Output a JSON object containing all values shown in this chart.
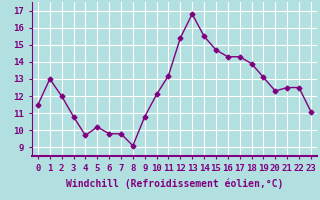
{
  "x": [
    0,
    1,
    2,
    3,
    4,
    5,
    6,
    7,
    8,
    9,
    10,
    11,
    12,
    13,
    14,
    15,
    16,
    17,
    18,
    19,
    20,
    21,
    22,
    23
  ],
  "y": [
    11.5,
    13.0,
    12.0,
    10.8,
    9.7,
    10.2,
    9.8,
    9.8,
    9.1,
    10.8,
    12.1,
    13.2,
    15.4,
    16.8,
    15.5,
    14.7,
    14.3,
    14.3,
    13.9,
    13.1,
    12.3,
    12.5,
    12.5,
    11.1
  ],
  "line_color": "#800080",
  "marker": "D",
  "marker_size": 2.5,
  "bg_color": "#b2e0e0",
  "grid_color": "#ffffff",
  "xlabel": "Windchill (Refroidissement éolien,°C)",
  "tick_color": "#800080",
  "ylim": [
    8.5,
    17.5
  ],
  "xlim": [
    -0.5,
    23.5
  ],
  "yticks": [
    9,
    10,
    11,
    12,
    13,
    14,
    15,
    16,
    17
  ],
  "xticks": [
    0,
    1,
    2,
    3,
    4,
    5,
    6,
    7,
    8,
    9,
    10,
    11,
    12,
    13,
    14,
    15,
    16,
    17,
    18,
    19,
    20,
    21,
    22,
    23
  ],
  "font_size": 6.5,
  "xlabel_font_size": 7
}
